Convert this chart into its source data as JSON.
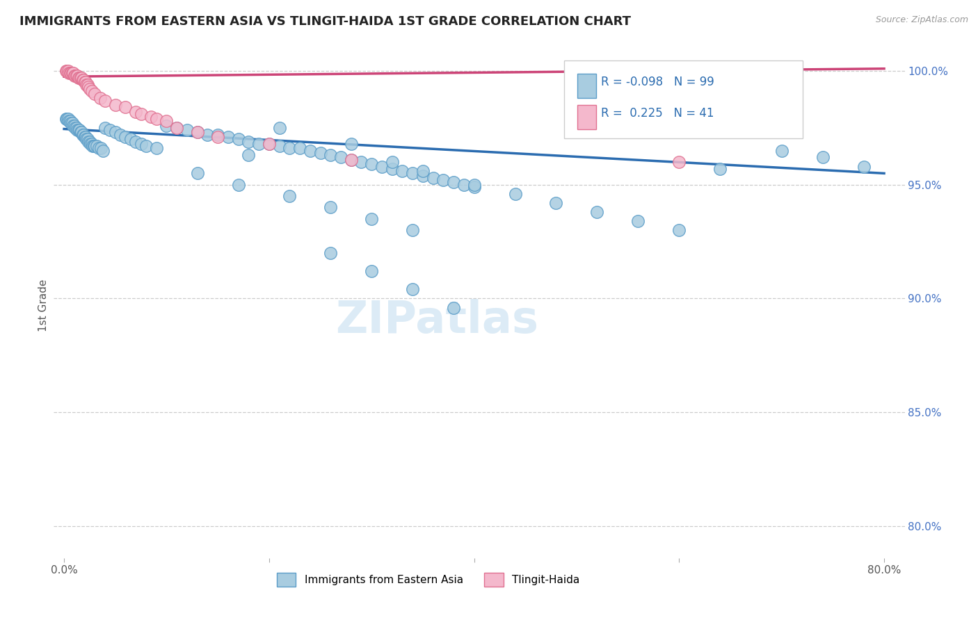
{
  "title": "IMMIGRANTS FROM EASTERN ASIA VS TLINGIT-HAIDA 1ST GRADE CORRELATION CHART",
  "source": "Source: ZipAtlas.com",
  "ylabel": "1st Grade",
  "xlim": [
    -0.01,
    0.82
  ],
  "ylim": [
    0.786,
    1.008
  ],
  "yticks": [
    0.8,
    0.85,
    0.9,
    0.95,
    1.0
  ],
  "ytick_labels": [
    "80.0%",
    "85.0%",
    "90.0%",
    "95.0%",
    "100.0%"
  ],
  "xticks": [
    0.0,
    0.2,
    0.4,
    0.6,
    0.8
  ],
  "xtick_labels": [
    "0.0%",
    "",
    "",
    "",
    "80.0%"
  ],
  "legend_R1": "-0.098",
  "legend_N1": "99",
  "legend_R2": "0.225",
  "legend_N2": "41",
  "blue_color": "#a8cce0",
  "pink_color": "#f4b8cc",
  "blue_edge_color": "#5b9dc8",
  "pink_edge_color": "#e07090",
  "blue_line_color": "#2b6cb0",
  "pink_line_color": "#cc4477",
  "watermark": "ZIPatlas",
  "blue_trend_x": [
    0.0,
    0.8
  ],
  "blue_trend_y": [
    0.9745,
    0.955
  ],
  "pink_trend_x": [
    0.0,
    0.8
  ],
  "pink_trend_y": [
    0.9975,
    1.001
  ],
  "blue_scatter_x": [
    0.002,
    0.003,
    0.004,
    0.005,
    0.006,
    0.007,
    0.008,
    0.009,
    0.01,
    0.011,
    0.012,
    0.013,
    0.014,
    0.015,
    0.016,
    0.017,
    0.018,
    0.019,
    0.02,
    0.021,
    0.022,
    0.023,
    0.024,
    0.025,
    0.026,
    0.027,
    0.028,
    0.029,
    0.03,
    0.032,
    0.034,
    0.036,
    0.038,
    0.04,
    0.045,
    0.05,
    0.055,
    0.06,
    0.065,
    0.07,
    0.075,
    0.08,
    0.09,
    0.1,
    0.11,
    0.12,
    0.13,
    0.14,
    0.15,
    0.16,
    0.17,
    0.18,
    0.19,
    0.2,
    0.21,
    0.22,
    0.23,
    0.24,
    0.25,
    0.26,
    0.27,
    0.28,
    0.29,
    0.3,
    0.31,
    0.32,
    0.33,
    0.34,
    0.35,
    0.36,
    0.37,
    0.38,
    0.39,
    0.4,
    0.18,
    0.21,
    0.28,
    0.32,
    0.35,
    0.4,
    0.44,
    0.48,
    0.52,
    0.56,
    0.6,
    0.64,
    0.7,
    0.74,
    0.78,
    0.13,
    0.17,
    0.22,
    0.26,
    0.3,
    0.34,
    0.26,
    0.3,
    0.34,
    0.38
  ],
  "blue_scatter_y": [
    0.979,
    0.979,
    0.979,
    0.978,
    0.978,
    0.977,
    0.977,
    0.976,
    0.976,
    0.975,
    0.975,
    0.974,
    0.974,
    0.974,
    0.973,
    0.973,
    0.972,
    0.972,
    0.971,
    0.971,
    0.97,
    0.97,
    0.969,
    0.969,
    0.968,
    0.968,
    0.967,
    0.967,
    0.967,
    0.967,
    0.966,
    0.966,
    0.965,
    0.975,
    0.974,
    0.973,
    0.972,
    0.971,
    0.97,
    0.969,
    0.968,
    0.967,
    0.966,
    0.976,
    0.975,
    0.974,
    0.973,
    0.972,
    0.972,
    0.971,
    0.97,
    0.969,
    0.968,
    0.968,
    0.967,
    0.966,
    0.966,
    0.965,
    0.964,
    0.963,
    0.962,
    0.961,
    0.96,
    0.959,
    0.958,
    0.957,
    0.956,
    0.955,
    0.954,
    0.953,
    0.952,
    0.951,
    0.95,
    0.949,
    0.963,
    0.975,
    0.968,
    0.96,
    0.956,
    0.95,
    0.946,
    0.942,
    0.938,
    0.934,
    0.93,
    0.957,
    0.965,
    0.962,
    0.958,
    0.955,
    0.95,
    0.945,
    0.94,
    0.935,
    0.93,
    0.92,
    0.912,
    0.904,
    0.896
  ],
  "pink_scatter_x": [
    0.002,
    0.003,
    0.004,
    0.005,
    0.006,
    0.007,
    0.008,
    0.009,
    0.01,
    0.011,
    0.012,
    0.013,
    0.014,
    0.015,
    0.016,
    0.017,
    0.018,
    0.019,
    0.02,
    0.021,
    0.022,
    0.023,
    0.024,
    0.025,
    0.027,
    0.03,
    0.035,
    0.04,
    0.05,
    0.06,
    0.07,
    0.075,
    0.085,
    0.09,
    0.1,
    0.11,
    0.13,
    0.15,
    0.2,
    0.28,
    0.6
  ],
  "pink_scatter_y": [
    1.0,
    1.0,
    1.0,
    0.999,
    0.999,
    0.999,
    0.999,
    0.999,
    0.998,
    0.998,
    0.998,
    0.998,
    0.997,
    0.997,
    0.997,
    0.997,
    0.996,
    0.996,
    0.995,
    0.995,
    0.994,
    0.994,
    0.993,
    0.992,
    0.991,
    0.99,
    0.988,
    0.987,
    0.985,
    0.984,
    0.982,
    0.981,
    0.98,
    0.979,
    0.978,
    0.975,
    0.973,
    0.971,
    0.968,
    0.961,
    0.96
  ]
}
